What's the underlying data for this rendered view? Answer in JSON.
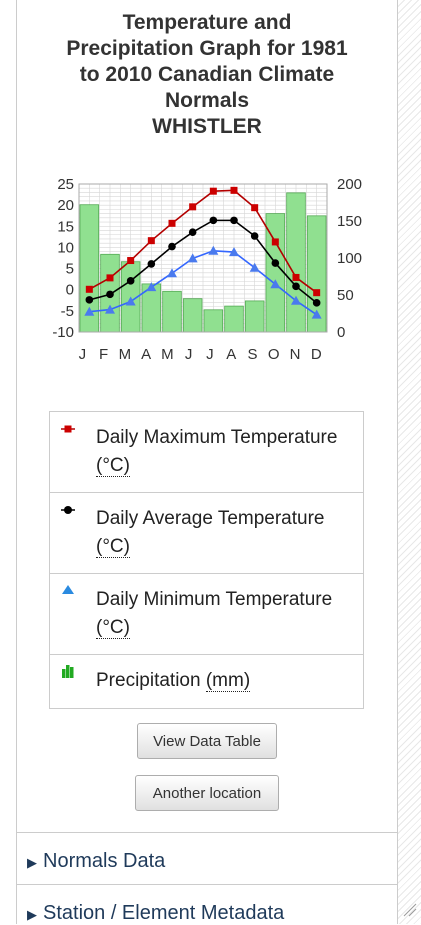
{
  "title": {
    "lines": [
      "Temperature and",
      "Precipitation Graph for 1981",
      "to 2010 Canadian Climate",
      "Normals",
      "WHISTLER"
    ]
  },
  "chart_data": {
    "type": "combo",
    "categories": [
      "J",
      "F",
      "M",
      "A",
      "M",
      "J",
      "J",
      "A",
      "S",
      "O",
      "N",
      "D"
    ],
    "y_left_ticks": [
      "25",
      "20",
      "15",
      "10",
      "5",
      "0",
      "-5",
      "-10"
    ],
    "y_right_ticks": [
      "200",
      "150",
      "100",
      "50",
      "0"
    ],
    "ylim_left": [
      -10,
      25
    ],
    "ylim_right": [
      0,
      200
    ],
    "grid": true,
    "series": [
      {
        "name": "Daily Maximum Temperature (°C)",
        "kind": "line",
        "axis": "left",
        "color": "#b30000",
        "marker": "square",
        "values": [
          0.1,
          2.8,
          6.9,
          11.6,
          15.7,
          19.6,
          23.3,
          23.5,
          19.4,
          11.3,
          2.9,
          -0.7
        ]
      },
      {
        "name": "Daily Average Temperature (°C)",
        "kind": "line",
        "axis": "left",
        "color": "#000000",
        "marker": "circle",
        "values": [
          -2.4,
          -1.1,
          2.1,
          6.1,
          10.2,
          13.6,
          16.4,
          16.4,
          12.7,
          6.3,
          0.8,
          -3.1
        ]
      },
      {
        "name": "Daily Minimum Temperature (°C)",
        "kind": "line",
        "axis": "left",
        "color": "#3366ff",
        "marker": "triangle",
        "values": [
          -5.2,
          -4.7,
          -2.8,
          0.6,
          3.9,
          7.4,
          9.2,
          8.9,
          5.2,
          1.3,
          -2.6,
          -5.9
        ]
      },
      {
        "name": "Precipitation (mm)",
        "kind": "bar",
        "axis": "right",
        "color": "#90e090",
        "values": [
          172.0,
          105.0,
          95.0,
          65.0,
          55.0,
          45.0,
          30.0,
          35.0,
          42.0,
          160.0,
          188.0,
          157.0
        ]
      }
    ]
  },
  "legend": {
    "items": [
      {
        "text": "Daily Maximum Temperature",
        "unit": "(°C)"
      },
      {
        "text": "Daily Average Temperature",
        "unit": "(°C)"
      },
      {
        "text": "Daily Minimum Temperature",
        "unit": "(°C)"
      },
      {
        "text": "Precipitation",
        "unit": "(mm)"
      }
    ]
  },
  "buttons": {
    "view_data_table": "View Data Table",
    "another_location": "Another location"
  },
  "sections": {
    "normals_data": "Normals Data",
    "station_metadata": "Station / Element Metadata"
  }
}
